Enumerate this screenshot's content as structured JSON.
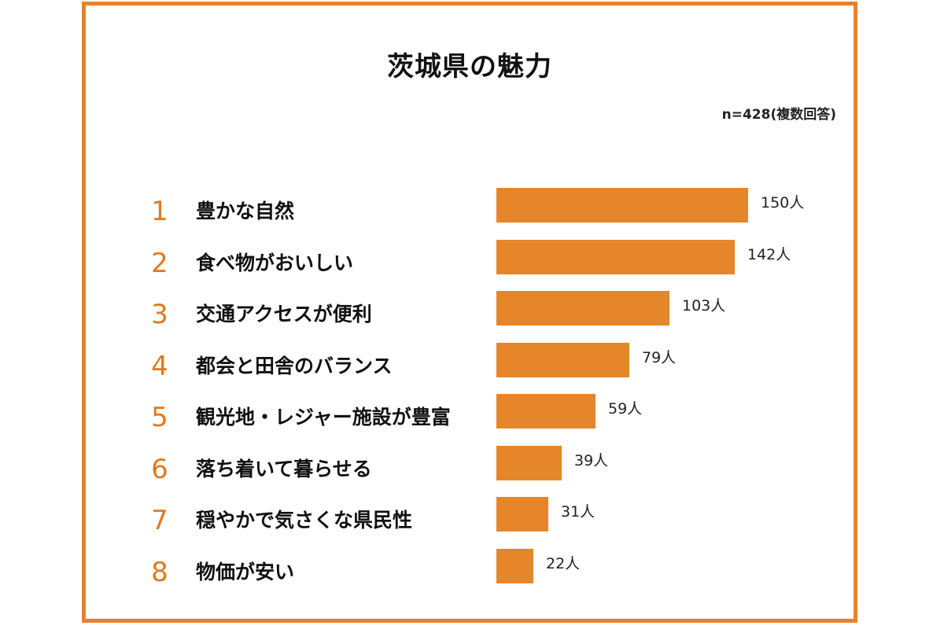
{
  "colors": {
    "accent": "#E8822A",
    "bar": "#E5862A",
    "rank": "#E07A1F"
  },
  "chart_data": {
    "type": "bar",
    "orientation": "horizontal",
    "title": "茨城県の魅力",
    "note": "n=428(複数回答)",
    "unit": "人",
    "ranks": [
      "1",
      "2",
      "3",
      "4",
      "5",
      "6",
      "7",
      "8"
    ],
    "categories": [
      "豊かな自然",
      "食べ物がおいしい",
      "交通アクセスが便利",
      "都会と田舎のバランス",
      "観光地・レジャー施設が豊富",
      "落ち着いて暮らせる",
      "穏やかで気さくな県民性",
      "物価が安い"
    ],
    "values": [
      150,
      142,
      103,
      79,
      59,
      39,
      31,
      22
    ],
    "value_labels": [
      "150人",
      "142人",
      "103人",
      "79人",
      "59人",
      "39人",
      "31人",
      "22人"
    ],
    "xlim": [
      0,
      150
    ],
    "grid": false,
    "legend": "none"
  }
}
